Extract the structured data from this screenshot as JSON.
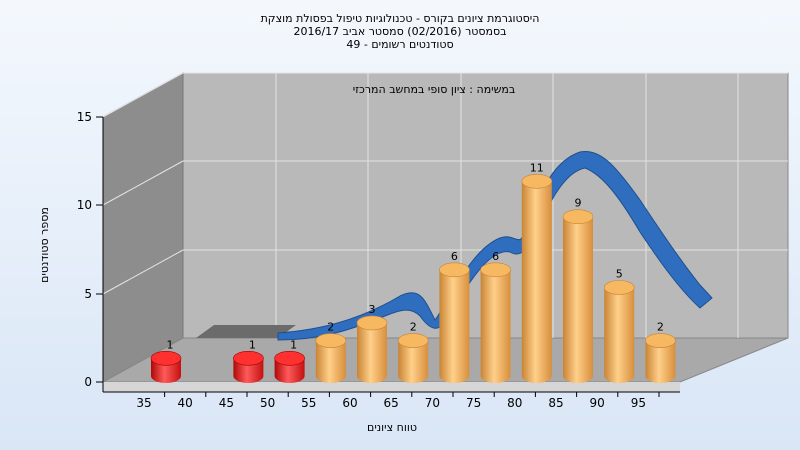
{
  "chart_data": {
    "type": "bar",
    "title_lines": [
      "היסטוגרמת ציונים בקורס - טכנולוגיות טיפול בפסולת מוצקת",
      "בסמסטר  (02/2016)  סמסטר אביב 2016/17",
      "סטודנטים רשומים - 49"
    ],
    "subtitle": "במשימה : ציון סופי במחשב המרכזי",
    "xlabel": "טווח ציונים",
    "ylabel": "מספר סטודנטים",
    "y_ticks": [
      "0",
      "5",
      "10",
      "15"
    ],
    "x_ticks": [
      "35",
      "40",
      "45",
      "50",
      "55",
      "60",
      "65",
      "70",
      "75",
      "80",
      "85",
      "90",
      "95"
    ],
    "ylim": [
      0,
      15
    ],
    "categories": [
      "35",
      "45",
      "50",
      "55",
      "60",
      "65",
      "70",
      "75",
      "80",
      "85",
      "90",
      "95"
    ],
    "values": [
      1,
      1,
      1,
      2,
      3,
      2,
      6,
      6,
      11,
      9,
      5,
      2
    ],
    "value_labels": [
      "1",
      "1",
      "1",
      "2",
      "3",
      "2",
      "6",
      "6",
      "11",
      "9",
      "5",
      "2"
    ],
    "failing_categories": [
      "35",
      "45",
      "50"
    ],
    "colors": {
      "failing": "#e01818",
      "passing": "#f0a64a",
      "curve": "#2f6ebf",
      "back_wall": "#b9b9b9",
      "side_wall": "#8a8a8a",
      "floor": "#a8a8a8"
    }
  }
}
